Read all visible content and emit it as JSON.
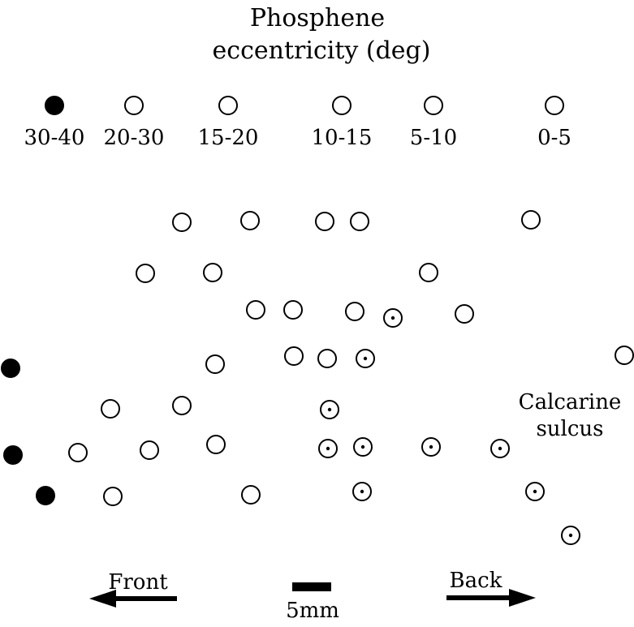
{
  "title_line1": "Phosphene",
  "title_line2": "eccentricity (deg)",
  "legend": [
    {
      "label": "30-40",
      "style": "filled"
    },
    {
      "label": "20-30",
      "style": "open"
    },
    {
      "label": "15-20",
      "style": "open"
    },
    {
      "label": "10-15",
      "style": "open"
    },
    {
      "label": "5-10",
      "style": "open"
    },
    {
      "label": "0-5",
      "style": "open"
    }
  ],
  "sulcus_label_line1": "Calcarine",
  "sulcus_label_line2": "sulcus",
  "front_label": "Front",
  "back_label": "Back",
  "scale_label": "5mm",
  "colors": {
    "ink": "#000000",
    "background": "#ffffff"
  }
}
